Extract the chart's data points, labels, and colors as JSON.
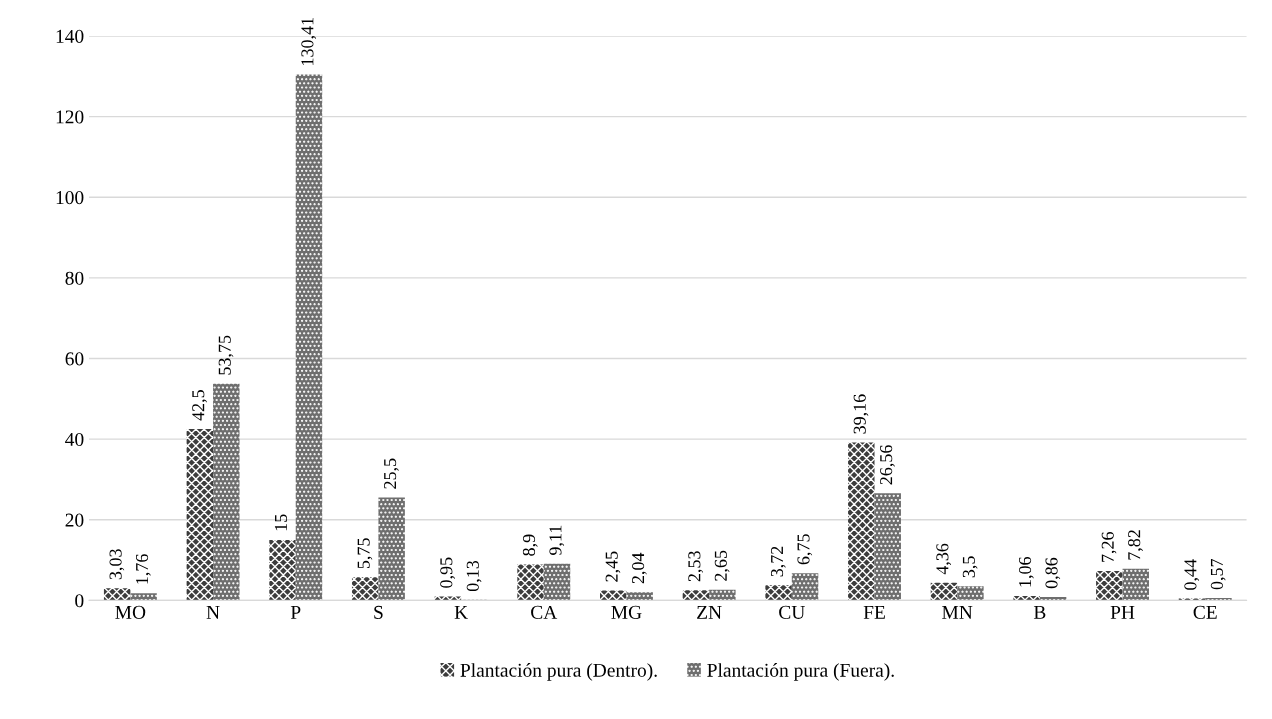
{
  "chart_data": {
    "type": "bar",
    "categories": [
      "MO",
      "N",
      "P",
      "S",
      "K",
      "CA",
      "MG",
      "ZN",
      "CU",
      "FE",
      "MN",
      "B",
      "PH",
      "CE"
    ],
    "series": [
      {
        "name": "Plantación pura (Dentro).",
        "color": "#3c3c3c",
        "values": [
          3.03,
          42.5,
          15,
          5.75,
          0.95,
          8.9,
          2.45,
          2.53,
          3.72,
          39.16,
          4.36,
          1.06,
          7.26,
          0.44
        ],
        "value_labels": [
          "3,03",
          "42,5",
          "15",
          "5,75",
          "0,95",
          "8,9",
          "2,45",
          "2,53",
          "3,72",
          "39,16",
          "4,36",
          "1,06",
          "7,26",
          "0,44"
        ]
      },
      {
        "name": "Plantación pura (Fuera).",
        "color": "#6e6e6e",
        "values": [
          1.76,
          53.75,
          130.41,
          25.5,
          0.13,
          9.11,
          2.04,
          2.65,
          6.75,
          26.56,
          3.5,
          0.86,
          7.82,
          0.57
        ],
        "value_labels": [
          "1,76",
          "53,75",
          "130,41",
          "25,5",
          "0,13",
          "9,11",
          "2,04",
          "2,65",
          "6,75",
          "26,56",
          "3,5",
          "0,86",
          "7,82",
          "0,57"
        ]
      }
    ],
    "ylim": [
      0,
      140
    ],
    "yticks": [
      0,
      20,
      40,
      60,
      80,
      100,
      120,
      140
    ],
    "grid": "y",
    "legend": "bottom"
  }
}
